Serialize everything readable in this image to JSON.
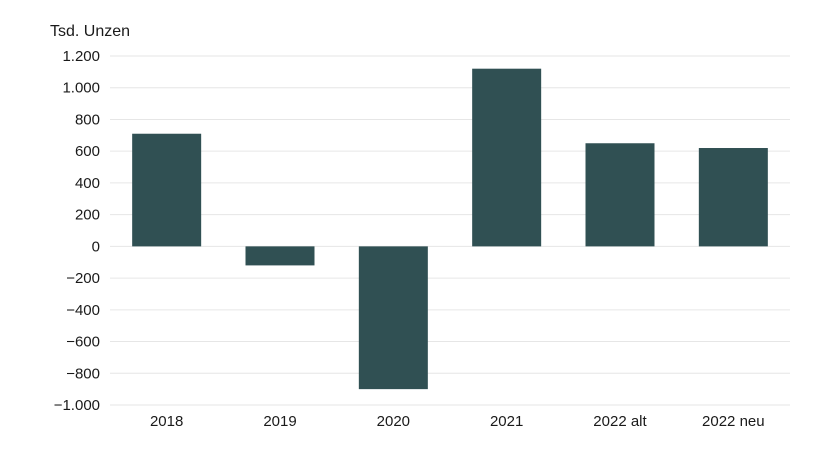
{
  "colors": {
    "bar": "#305053",
    "grid": "#e6e6e6",
    "text": "#1a1a1a"
  },
  "chart_data": {
    "type": "bar",
    "ylabel": "Tsd. Unzen",
    "categories": [
      "2018",
      "2019",
      "2020",
      "2021",
      "2022 alt",
      "2022 neu"
    ],
    "values": [
      710,
      -120,
      -900,
      1120,
      650,
      620
    ],
    "ylim": [
      -1000,
      1200
    ],
    "yticks": [
      1200,
      1000,
      800,
      600,
      400,
      200,
      0,
      -200,
      -400,
      -600,
      -800,
      -1000
    ],
    "ytick_labels": [
      "1.200",
      "1.000",
      "800",
      "600",
      "400",
      "200",
      "0",
      "−200",
      "−400",
      "−600",
      "−800",
      "−1.000"
    ],
    "grid": true,
    "legend": "none"
  }
}
